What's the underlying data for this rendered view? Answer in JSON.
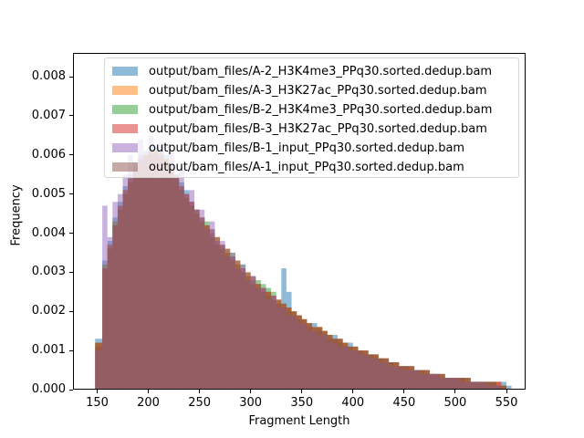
{
  "chart_data": {
    "type": "histogram",
    "title": "",
    "xlabel": "Fragment Length",
    "ylabel": "Frequency",
    "xlim": [
      127,
      570
    ],
    "ylim": [
      0.0,
      0.0086
    ],
    "xticks": [
      150,
      200,
      250,
      300,
      350,
      400,
      450,
      500,
      550
    ],
    "yticks": [
      0.0,
      0.001,
      0.002,
      0.003,
      0.004,
      0.005,
      0.006,
      0.007,
      0.008
    ],
    "ytick_labels": [
      "0.000",
      "0.001",
      "0.002",
      "0.003",
      "0.004",
      "0.005",
      "0.006",
      "0.007",
      "0.008"
    ],
    "grid": false,
    "legend_position": "upper right",
    "alpha": 0.5,
    "bins_x": [
      148,
      155,
      160,
      165,
      170,
      175,
      180,
      185,
      190,
      195,
      200,
      205,
      210,
      215,
      220,
      225,
      230,
      235,
      240,
      245,
      250,
      255,
      260,
      265,
      270,
      275,
      280,
      285,
      290,
      295,
      300,
      305,
      310,
      315,
      320,
      325,
      330,
      335,
      340,
      345,
      350,
      355,
      360,
      365,
      370,
      375,
      380,
      385,
      390,
      395,
      400,
      405,
      410,
      415,
      420,
      425,
      430,
      435,
      440,
      445,
      450,
      455,
      460,
      465,
      470,
      475,
      480,
      485,
      490,
      495,
      500,
      505,
      510,
      515,
      520,
      525,
      530,
      535,
      540,
      545,
      550
    ],
    "series": [
      {
        "name": "output/bam_files/A-2_H3K4me3_PPq30.sorted.dedup.bam",
        "color": "#1f77b4",
        "values": [
          0.0013,
          0.0033,
          0.0038,
          0.0044,
          0.0048,
          0.0052,
          0.0055,
          0.0058,
          0.006,
          0.0061,
          0.0062,
          0.0062,
          0.0061,
          0.006,
          0.0058,
          0.0055,
          0.0053,
          0.0051,
          0.0048,
          0.0046,
          0.0044,
          0.0042,
          0.004,
          0.0038,
          0.0037,
          0.0035,
          0.0034,
          0.0032,
          0.0031,
          0.0029,
          0.0028,
          0.0027,
          0.0026,
          0.0025,
          0.0024,
          0.0022,
          0.0031,
          0.0025,
          0.002,
          0.0019,
          0.0018,
          0.0017,
          0.0017,
          0.0016,
          0.0015,
          0.0014,
          0.0014,
          0.0013,
          0.0012,
          0.0012,
          0.0011,
          0.001,
          0.001,
          0.0009,
          0.0009,
          0.0008,
          0.0008,
          0.0007,
          0.0007,
          0.0006,
          0.0006,
          0.0006,
          0.0005,
          0.0005,
          0.0005,
          0.0004,
          0.0004,
          0.0004,
          0.0003,
          0.0003,
          0.0003,
          0.0003,
          0.0003,
          0.0002,
          0.0002,
          0.0002,
          0.0002,
          0.0002,
          0.0002,
          0.0002,
          0.0001
        ]
      },
      {
        "name": "output/bam_files/A-3_H3K27ac_PPq30.sorted.dedup.bam",
        "color": "#ff7f0e",
        "values": [
          0.0012,
          0.0032,
          0.0037,
          0.0043,
          0.0047,
          0.0051,
          0.0054,
          0.0057,
          0.0059,
          0.006,
          0.0061,
          0.0061,
          0.006,
          0.0059,
          0.0057,
          0.0054,
          0.0052,
          0.005,
          0.0048,
          0.0046,
          0.0044,
          0.0042,
          0.004,
          0.0038,
          0.0037,
          0.0035,
          0.0034,
          0.0032,
          0.0031,
          0.0029,
          0.0028,
          0.0027,
          0.0026,
          0.0025,
          0.0024,
          0.0023,
          0.0022,
          0.0021,
          0.002,
          0.0019,
          0.0018,
          0.0017,
          0.0016,
          0.0016,
          0.0015,
          0.0014,
          0.0013,
          0.0013,
          0.0012,
          0.0011,
          0.0011,
          0.001,
          0.001,
          0.0009,
          0.0009,
          0.0008,
          0.0008,
          0.0007,
          0.0007,
          0.0006,
          0.0006,
          0.0006,
          0.0005,
          0.0005,
          0.0005,
          0.0004,
          0.0004,
          0.0004,
          0.0003,
          0.0003,
          0.0003,
          0.0003,
          0.0003,
          0.0002,
          0.0002,
          0.0002,
          0.0002,
          0.0002,
          0.0002,
          0.0001,
          0.0
        ]
      },
      {
        "name": "output/bam_files/B-2_H3K4me3_PPq30.sorted.dedup.bam",
        "color": "#2ca02c",
        "values": [
          0.0012,
          0.0032,
          0.0037,
          0.0043,
          0.0047,
          0.0051,
          0.0054,
          0.0057,
          0.0059,
          0.006,
          0.0061,
          0.0061,
          0.006,
          0.0059,
          0.0057,
          0.0054,
          0.0052,
          0.005,
          0.0048,
          0.0046,
          0.0044,
          0.0043,
          0.0041,
          0.0039,
          0.0037,
          0.0036,
          0.0035,
          0.0033,
          0.0032,
          0.003,
          0.0029,
          0.0028,
          0.0027,
          0.0026,
          0.0025,
          0.0023,
          0.0022,
          0.0021,
          0.002,
          0.0019,
          0.0018,
          0.0017,
          0.0016,
          0.0016,
          0.0015,
          0.0014,
          0.0013,
          0.0013,
          0.0012,
          0.0011,
          0.0011,
          0.001,
          0.001,
          0.0009,
          0.0009,
          0.0008,
          0.0008,
          0.0007,
          0.0007,
          0.0006,
          0.0006,
          0.0006,
          0.0005,
          0.0005,
          0.0005,
          0.0004,
          0.0004,
          0.0004,
          0.0003,
          0.0003,
          0.0003,
          0.0003,
          0.0003,
          0.0002,
          0.0002,
          0.0002,
          0.0002,
          0.0002,
          0.0001,
          0.0001,
          0.0
        ]
      },
      {
        "name": "output/bam_files/B-3_H3K27ac_PPq30.sorted.dedup.bam",
        "color": "#d62728",
        "values": [
          0.0012,
          0.0031,
          0.0037,
          0.0042,
          0.0047,
          0.0051,
          0.0054,
          0.0057,
          0.0059,
          0.006,
          0.0061,
          0.0061,
          0.006,
          0.0059,
          0.0057,
          0.0055,
          0.0052,
          0.005,
          0.0048,
          0.0046,
          0.0044,
          0.0042,
          0.0041,
          0.0039,
          0.0037,
          0.0036,
          0.0034,
          0.0033,
          0.0031,
          0.003,
          0.0029,
          0.0027,
          0.0026,
          0.0025,
          0.0024,
          0.0023,
          0.0022,
          0.0021,
          0.002,
          0.0019,
          0.0018,
          0.0017,
          0.0016,
          0.0016,
          0.0015,
          0.0014,
          0.0013,
          0.0013,
          0.0012,
          0.0011,
          0.0011,
          0.001,
          0.001,
          0.0009,
          0.0009,
          0.0008,
          0.0008,
          0.0007,
          0.0007,
          0.0006,
          0.0006,
          0.0006,
          0.0005,
          0.0005,
          0.0005,
          0.0004,
          0.0004,
          0.0004,
          0.0003,
          0.0003,
          0.0003,
          0.0003,
          0.0003,
          0.0002,
          0.0002,
          0.0002,
          0.0002,
          0.0002,
          0.0002,
          0.0001,
          0.0
        ]
      },
      {
        "name": "output/bam_files/B-1_input_PPq30.sorted.dedup.bam",
        "color": "#9467bd",
        "values": [
          0.001,
          0.0047,
          0.0039,
          0.0048,
          0.005,
          0.0055,
          0.006,
          0.0058,
          0.0064,
          0.0059,
          0.0065,
          0.006,
          0.0063,
          0.0058,
          0.0061,
          0.0055,
          0.0056,
          0.005,
          0.0051,
          0.0046,
          0.0046,
          0.0041,
          0.0043,
          0.0038,
          0.0038,
          0.0034,
          0.0035,
          0.0031,
          0.0032,
          0.0028,
          0.0029,
          0.0026,
          0.0026,
          0.0023,
          0.0024,
          0.0021,
          0.0021,
          0.0019,
          0.0019,
          0.0017,
          0.0017,
          0.0015,
          0.0015,
          0.0014,
          0.0014,
          0.0012,
          0.0012,
          0.0011,
          0.0011,
          0.001,
          0.001,
          0.0009,
          0.0009,
          0.0008,
          0.0008,
          0.0007,
          0.0007,
          0.0006,
          0.0006,
          0.0005,
          0.0005,
          0.0005,
          0.0005,
          0.0004,
          0.0004,
          0.0004,
          0.0004,
          0.0003,
          0.0003,
          0.0003,
          0.0003,
          0.0002,
          0.0002,
          0.0002,
          0.0002,
          0.0002,
          0.0001,
          0.0001,
          0.0001,
          0.0,
          0.0
        ]
      },
      {
        "name": "output/bam_files/A-1_input_PPq30.sorted.dedup.bam",
        "color": "#8c564b",
        "values": [
          0.0011,
          0.0031,
          0.0036,
          0.0042,
          0.0046,
          0.005,
          0.0053,
          0.0056,
          0.0058,
          0.0059,
          0.006,
          0.006,
          0.0059,
          0.0058,
          0.0056,
          0.0054,
          0.0051,
          0.0049,
          0.0047,
          0.0045,
          0.0043,
          0.0041,
          0.0039,
          0.0037,
          0.0036,
          0.0034,
          0.0033,
          0.0031,
          0.003,
          0.0028,
          0.0027,
          0.0026,
          0.0025,
          0.0024,
          0.0023,
          0.0022,
          0.0021,
          0.002,
          0.0019,
          0.0018,
          0.0017,
          0.0016,
          0.0015,
          0.0015,
          0.0014,
          0.0013,
          0.0013,
          0.0012,
          0.0011,
          0.0011,
          0.001,
          0.001,
          0.0009,
          0.0009,
          0.0008,
          0.0008,
          0.0007,
          0.0007,
          0.0006,
          0.0006,
          0.0006,
          0.0005,
          0.0005,
          0.0005,
          0.0004,
          0.0004,
          0.0004,
          0.0003,
          0.0003,
          0.0003,
          0.0003,
          0.0003,
          0.0002,
          0.0002,
          0.0002,
          0.0002,
          0.0002,
          0.0002,
          0.0001,
          0.0001,
          0.0
        ]
      }
    ]
  },
  "axes": {
    "xlabel": "Fragment Length",
    "ylabel": "Frequency",
    "xtick_labels": [
      "150",
      "200",
      "250",
      "300",
      "350",
      "400",
      "450",
      "500",
      "550"
    ],
    "ytick_labels": [
      "0.000",
      "0.001",
      "0.002",
      "0.003",
      "0.004",
      "0.005",
      "0.006",
      "0.007",
      "0.008"
    ]
  },
  "legend": {
    "items": [
      {
        "label": "output/bam_files/A-2_H3K4me3_PPq30.sorted.dedup.bam",
        "color": "#1f77b4"
      },
      {
        "label": "output/bam_files/A-3_H3K27ac_PPq30.sorted.dedup.bam",
        "color": "#ff7f0e"
      },
      {
        "label": "output/bam_files/B-2_H3K4me3_PPq30.sorted.dedup.bam",
        "color": "#2ca02c"
      },
      {
        "label": "output/bam_files/B-3_H3K27ac_PPq30.sorted.dedup.bam",
        "color": "#d62728"
      },
      {
        "label": "output/bam_files/B-1_input_PPq30.sorted.dedup.bam",
        "color": "#9467bd"
      },
      {
        "label": "output/bam_files/A-1_input_PPq30.sorted.dedup.bam",
        "color": "#8c564b"
      }
    ]
  }
}
